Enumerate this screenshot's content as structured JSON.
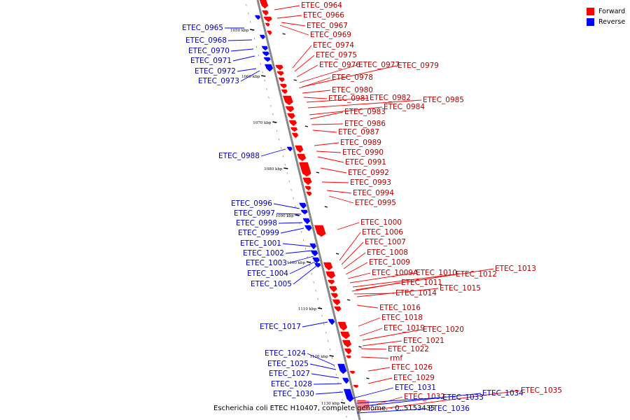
{
  "legend": {
    "forward_label": "Forward",
    "reverse_label": "Reverse",
    "forward_color": "#ff0000",
    "reverse_color": "#0000ff"
  },
  "caption": "Escherichia coli ETEC H10407, complete genome. - 0..5153435",
  "ticks": [
    "1050 kbp",
    "1060 kbp",
    "1070 kbp",
    "1080 kbp",
    "1090 kbp",
    "1100 kbp",
    "1110 kbp",
    "1120 kbp",
    "1130 kbp"
  ],
  "forward_genes": [
    "ETEC_0964",
    "ETEC_0966",
    "ETEC_0967",
    "ETEC_0969",
    "ETEC_0974",
    "ETEC_0975",
    "ETEC_0976",
    "ETEC_0977",
    "ETEC_0979",
    "ETEC_0978",
    "ETEC_0980",
    "ETEC_0981",
    "ETEC_0982",
    "ETEC_0985",
    "ETEC_0984",
    "ETEC_0983",
    "ETEC_0986",
    "ETEC_0987",
    "ETEC_0989",
    "ETEC_0990",
    "ETEC_0991",
    "ETEC_0992",
    "ETEC_0993",
    "ETEC_0994",
    "ETEC_0995",
    "ETEC_1000",
    "ETEC_1006",
    "ETEC_1007",
    "ETEC_1008",
    "ETEC_1009",
    "ETEC_1009A",
    "ETEC_1010",
    "ETEC_1012",
    "ETEC_1013",
    "ETEC_1011",
    "ETEC_1014",
    "ETEC_1015",
    "ETEC_1016",
    "ETEC_1018",
    "ETEC_1019",
    "ETEC_1020",
    "ETEC_1021",
    "ETEC_1022",
    "rmf",
    "ETEC_1026",
    "ETEC_1029",
    "ETEC_1032",
    "ETEC_1035"
  ],
  "reverse_genes": [
    "ETEC_0965",
    "ETEC_0968",
    "ETEC_0970",
    "ETEC_0971",
    "ETEC_0972",
    "ETEC_0973",
    "ETEC_0988",
    "ETEC_0996",
    "ETEC_0997",
    "ETEC_0998",
    "ETEC_0999",
    "ETEC_1001",
    "ETEC_1002",
    "ETEC_1003",
    "ETEC_1004",
    "ETEC_1005",
    "ETEC_1017",
    "ETEC_1024",
    "ETEC_1025",
    "ETEC_1027",
    "ETEC_1028",
    "ETEC_1030",
    "ETEC_1031",
    "ETEC_1033",
    "ETEC_1034",
    "ETEC_1036"
  ]
}
